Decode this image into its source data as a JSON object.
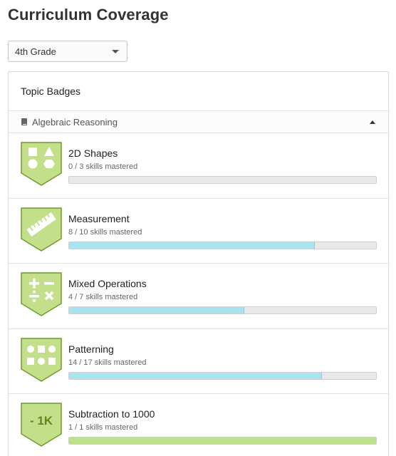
{
  "page": {
    "title": "Curriculum Coverage"
  },
  "grade_select": {
    "value": "4th Grade"
  },
  "card": {
    "header": "Topic Badges",
    "section": {
      "label": "Algebraic Reasoning",
      "icon": "book-icon"
    }
  },
  "colors": {
    "badge_fill": "#c4df8a",
    "badge_stroke": "#6f9a2e",
    "progress_partial": "#a9e3ef",
    "progress_complete": "#bde08a"
  },
  "badges": [
    {
      "title": "2D Shapes",
      "progress_text": "0 / 3 skills mastered",
      "mastered": 0,
      "total": 3,
      "icon": "shapes-icon"
    },
    {
      "title": "Measurement",
      "progress_text": "8 / 10 skills mastered",
      "mastered": 8,
      "total": 10,
      "icon": "ruler-icon"
    },
    {
      "title": "Mixed Operations",
      "progress_text": "4 / 7 skills mastered",
      "mastered": 4,
      "total": 7,
      "icon": "operations-icon"
    },
    {
      "title": "Patterning",
      "progress_text": "14 / 17 skills mastered",
      "mastered": 14,
      "total": 17,
      "icon": "pattern-icon"
    },
    {
      "title": "Subtraction to 1000",
      "progress_text": "1 / 1 skills mastered",
      "mastered": 1,
      "total": 1,
      "icon": "minus-1k-icon",
      "icon_text": "- 1K"
    }
  ]
}
